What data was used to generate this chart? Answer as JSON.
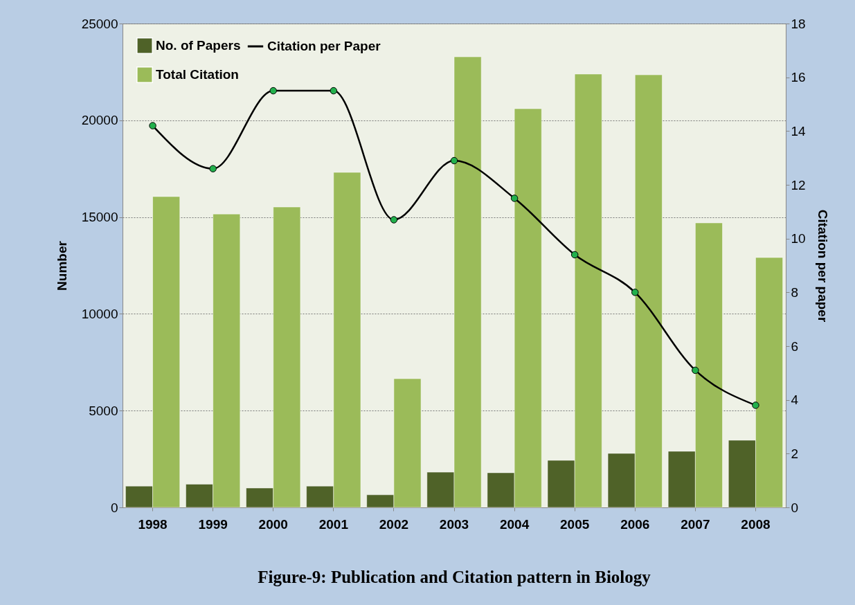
{
  "chart_data": {
    "type": "bar",
    "title": "Figure-9: Publication and Citation pattern in Biology",
    "ylabel": "Number",
    "y2label": "Citation per paper",
    "categories": [
      "1998",
      "1999",
      "2000",
      "2001",
      "2002",
      "2003",
      "2004",
      "2005",
      "2006",
      "2007",
      "2008"
    ],
    "series": [
      {
        "name": "No. of Papers",
        "color": "#4f6228",
        "values": [
          1100,
          1200,
          1000,
          1100,
          650,
          1820,
          1790,
          2430,
          2790,
          2900,
          3470
        ]
      },
      {
        "name": "Total Citation",
        "color": "#9bbb59",
        "values": [
          16060,
          15160,
          15520,
          17310,
          6650,
          23280,
          20600,
          22390,
          22350,
          14700,
          12910
        ]
      },
      {
        "name": "Citation per Paper",
        "type": "line",
        "axis": "y2",
        "color": "#000000",
        "values": [
          14.2,
          12.6,
          15.5,
          15.5,
          10.7,
          12.9,
          11.5,
          9.4,
          8.0,
          5.1,
          3.8
        ]
      }
    ],
    "ylim": [
      0,
      25000
    ],
    "yticks": [
      0,
      5000,
      10000,
      15000,
      20000,
      25000
    ],
    "y2lim": [
      0,
      18
    ],
    "y2ticks": [
      0,
      2,
      4,
      6,
      8,
      10,
      12,
      14,
      16,
      18
    ],
    "grid": "y",
    "legend": "top left",
    "marker": "circle",
    "line_style": "solid"
  }
}
